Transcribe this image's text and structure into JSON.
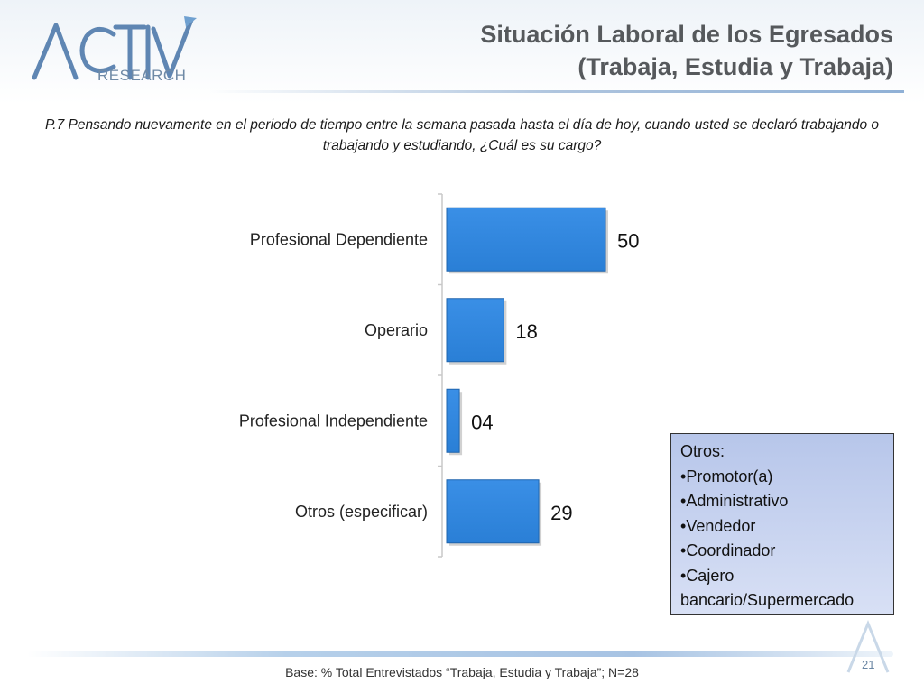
{
  "header": {
    "logo_text": "RESEARCH",
    "title_line1": "Situación Laboral de los Egresados",
    "title_line2": "(Trabaja, Estudia y Trabaja)"
  },
  "question": "P.7 Pensando nuevamente en el periodo de tiempo entre la semana pasada hasta el día de hoy, cuando usted se declaró trabajando o trabajando y estudiando, ¿Cuál es su cargo?",
  "chart_data": {
    "type": "bar",
    "orientation": "horizontal",
    "categories": [
      "Profesional Dependiente",
      "Operario",
      "Profesional Independiente",
      "Otros (especificar)"
    ],
    "values": [
      50,
      18,
      4,
      29
    ],
    "data_labels": [
      "50",
      "18",
      "04",
      "29"
    ],
    "xlim": [
      0,
      50
    ],
    "bar_color": "#2a7fd6",
    "grid": false,
    "title": "",
    "xlabel": "",
    "ylabel": ""
  },
  "otros": {
    "heading": "Otros:",
    "items": [
      "Promotor(a)",
      "Administrativo",
      "Vendedor",
      "Coordinador",
      "Cajero bancario/Supermercado"
    ]
  },
  "footer": {
    "base_note": "Base: % Total Entrevistados “Trabaja, Estudia y Trabaja”; N=28",
    "page_number": "21"
  }
}
